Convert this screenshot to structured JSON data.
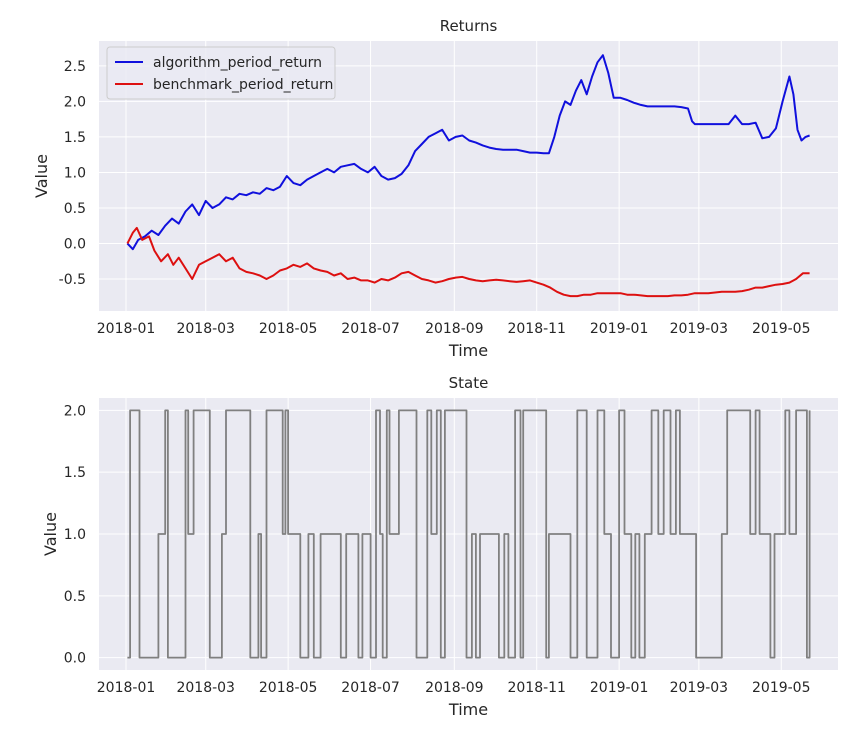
{
  "chart_data": [
    {
      "type": "line",
      "title": "Returns",
      "xlabel": "Time",
      "ylabel": "Value",
      "xlim": [
        "2017-12-12",
        "2019-06-12"
      ],
      "ylim": [
        -0.95,
        2.85
      ],
      "x_ticks": [
        "2018-01",
        "2018-03",
        "2018-05",
        "2018-07",
        "2018-09",
        "2018-11",
        "2019-01",
        "2019-03",
        "2019-05"
      ],
      "y_ticks": [
        -0.5,
        0.0,
        0.5,
        1.0,
        1.5,
        2.0,
        2.5
      ],
      "grid": true,
      "legend": "upper-left",
      "series": [
        {
          "name": "algorithm_period_return",
          "color": "#1010dd",
          "x": [
            "2018-01-02",
            "2018-01-06",
            "2018-01-10",
            "2018-01-15",
            "2018-01-20",
            "2018-01-25",
            "2018-01-30",
            "2018-02-04",
            "2018-02-09",
            "2018-02-14",
            "2018-02-19",
            "2018-02-24",
            "2018-03-01",
            "2018-03-06",
            "2018-03-11",
            "2018-03-16",
            "2018-03-21",
            "2018-03-26",
            "2018-03-31",
            "2018-04-05",
            "2018-04-10",
            "2018-04-15",
            "2018-04-20",
            "2018-04-25",
            "2018-04-30",
            "2018-05-05",
            "2018-05-10",
            "2018-05-15",
            "2018-05-20",
            "2018-05-25",
            "2018-05-30",
            "2018-06-04",
            "2018-06-09",
            "2018-06-14",
            "2018-06-19",
            "2018-06-24",
            "2018-06-29",
            "2018-07-04",
            "2018-07-09",
            "2018-07-14",
            "2018-07-19",
            "2018-07-24",
            "2018-07-29",
            "2018-08-03",
            "2018-08-08",
            "2018-08-13",
            "2018-08-18",
            "2018-08-23",
            "2018-08-28",
            "2018-09-02",
            "2018-09-07",
            "2018-09-12",
            "2018-09-17",
            "2018-09-22",
            "2018-09-27",
            "2018-10-02",
            "2018-10-07",
            "2018-10-12",
            "2018-10-17",
            "2018-10-22",
            "2018-10-27",
            "2018-11-01",
            "2018-11-06",
            "2018-11-10",
            "2018-11-14",
            "2018-11-18",
            "2018-11-22",
            "2018-11-26",
            "2018-11-30",
            "2018-12-04",
            "2018-12-08",
            "2018-12-12",
            "2018-12-16",
            "2018-12-20",
            "2018-12-24",
            "2018-12-28",
            "2019-01-02",
            "2019-01-07",
            "2019-01-12",
            "2019-01-17",
            "2019-01-22",
            "2019-01-27",
            "2019-02-01",
            "2019-02-06",
            "2019-02-11",
            "2019-02-16",
            "2019-02-21",
            "2019-02-24",
            "2019-02-26",
            "2019-03-03",
            "2019-03-08",
            "2019-03-13",
            "2019-03-18",
            "2019-03-23",
            "2019-03-28",
            "2019-04-02",
            "2019-04-07",
            "2019-04-12",
            "2019-04-17",
            "2019-04-22",
            "2019-04-27",
            "2019-05-02",
            "2019-05-07",
            "2019-05-10",
            "2019-05-13",
            "2019-05-16",
            "2019-05-19",
            "2019-05-22"
          ],
          "values": [
            0.0,
            -0.08,
            0.05,
            0.1,
            0.18,
            0.12,
            0.25,
            0.35,
            0.28,
            0.45,
            0.55,
            0.4,
            0.6,
            0.5,
            0.55,
            0.65,
            0.62,
            0.7,
            0.68,
            0.72,
            0.7,
            0.78,
            0.75,
            0.8,
            0.95,
            0.85,
            0.82,
            0.9,
            0.95,
            1.0,
            1.05,
            1.0,
            1.08,
            1.1,
            1.12,
            1.05,
            1.0,
            1.08,
            0.95,
            0.9,
            0.92,
            0.98,
            1.1,
            1.3,
            1.4,
            1.5,
            1.55,
            1.6,
            1.45,
            1.5,
            1.52,
            1.45,
            1.42,
            1.38,
            1.35,
            1.33,
            1.32,
            1.32,
            1.32,
            1.3,
            1.28,
            1.28,
            1.27,
            1.27,
            1.5,
            1.8,
            2.0,
            1.95,
            2.15,
            2.3,
            2.1,
            2.35,
            2.55,
            2.65,
            2.4,
            2.05,
            2.05,
            2.02,
            1.98,
            1.95,
            1.93,
            1.93,
            1.93,
            1.93,
            1.93,
            1.92,
            1.9,
            1.72,
            1.68,
            1.68,
            1.68,
            1.68,
            1.68,
            1.68,
            1.8,
            1.68,
            1.68,
            1.7,
            1.48,
            1.5,
            1.62,
            2.0,
            2.35,
            2.1,
            1.6,
            1.45,
            1.5,
            1.52
          ]
        },
        {
          "name": "benchmark_period_return",
          "color": "#dd1010",
          "x": [
            "2018-01-02",
            "2018-01-06",
            "2018-01-09",
            "2018-01-13",
            "2018-01-18",
            "2018-01-22",
            "2018-01-27",
            "2018-02-01",
            "2018-02-05",
            "2018-02-09",
            "2018-02-14",
            "2018-02-19",
            "2018-02-24",
            "2018-03-01",
            "2018-03-06",
            "2018-03-11",
            "2018-03-16",
            "2018-03-21",
            "2018-03-26",
            "2018-03-31",
            "2018-04-05",
            "2018-04-10",
            "2018-04-15",
            "2018-04-20",
            "2018-04-25",
            "2018-04-30",
            "2018-05-05",
            "2018-05-10",
            "2018-05-15",
            "2018-05-20",
            "2018-05-25",
            "2018-05-30",
            "2018-06-04",
            "2018-06-09",
            "2018-06-14",
            "2018-06-19",
            "2018-06-24",
            "2018-06-29",
            "2018-07-04",
            "2018-07-09",
            "2018-07-14",
            "2018-07-19",
            "2018-07-24",
            "2018-07-29",
            "2018-08-03",
            "2018-08-08",
            "2018-08-13",
            "2018-08-18",
            "2018-08-23",
            "2018-08-28",
            "2018-09-02",
            "2018-09-07",
            "2018-09-12",
            "2018-09-17",
            "2018-09-22",
            "2018-09-27",
            "2018-10-02",
            "2018-10-07",
            "2018-10-12",
            "2018-10-17",
            "2018-10-22",
            "2018-10-27",
            "2018-11-01",
            "2018-11-06",
            "2018-11-11",
            "2018-11-16",
            "2018-11-21",
            "2018-11-26",
            "2018-12-01",
            "2018-12-06",
            "2018-12-11",
            "2018-12-16",
            "2018-12-21",
            "2018-12-26",
            "2019-01-02",
            "2019-01-07",
            "2019-01-12",
            "2019-01-17",
            "2019-01-22",
            "2019-01-27",
            "2019-02-01",
            "2019-02-06",
            "2019-02-11",
            "2019-02-16",
            "2019-02-21",
            "2019-02-26",
            "2019-03-03",
            "2019-03-08",
            "2019-03-13",
            "2019-03-18",
            "2019-03-23",
            "2019-03-28",
            "2019-04-02",
            "2019-04-07",
            "2019-04-12",
            "2019-04-17",
            "2019-04-22",
            "2019-04-27",
            "2019-05-02",
            "2019-05-07",
            "2019-05-12",
            "2019-05-17",
            "2019-05-22"
          ],
          "values": [
            0.0,
            0.15,
            0.22,
            0.05,
            0.1,
            -0.1,
            -0.25,
            -0.15,
            -0.3,
            -0.2,
            -0.35,
            -0.5,
            -0.3,
            -0.25,
            -0.2,
            -0.15,
            -0.25,
            -0.2,
            -0.35,
            -0.4,
            -0.42,
            -0.45,
            -0.5,
            -0.45,
            -0.38,
            -0.35,
            -0.3,
            -0.33,
            -0.28,
            -0.35,
            -0.38,
            -0.4,
            -0.45,
            -0.42,
            -0.5,
            -0.48,
            -0.52,
            -0.52,
            -0.55,
            -0.5,
            -0.52,
            -0.48,
            -0.42,
            -0.4,
            -0.45,
            -0.5,
            -0.52,
            -0.55,
            -0.53,
            -0.5,
            -0.48,
            -0.47,
            -0.5,
            -0.52,
            -0.53,
            -0.52,
            -0.51,
            -0.52,
            -0.53,
            -0.54,
            -0.53,
            -0.52,
            -0.55,
            -0.58,
            -0.62,
            -0.68,
            -0.72,
            -0.74,
            -0.74,
            -0.72,
            -0.72,
            -0.7,
            -0.7,
            -0.7,
            -0.7,
            -0.72,
            -0.72,
            -0.73,
            -0.74,
            -0.74,
            -0.74,
            -0.74,
            -0.73,
            -0.73,
            -0.72,
            -0.7,
            -0.7,
            -0.7,
            -0.69,
            -0.68,
            -0.68,
            -0.68,
            -0.67,
            -0.65,
            -0.62,
            -0.62,
            -0.6,
            -0.58,
            -0.57,
            -0.55,
            -0.5,
            -0.42,
            -0.42
          ]
        }
      ]
    },
    {
      "type": "line",
      "title": "State",
      "xlabel": "Time",
      "ylabel": "Value",
      "xlim": [
        "2017-12-12",
        "2019-06-12"
      ],
      "ylim": [
        -0.1,
        2.1
      ],
      "x_ticks": [
        "2018-01",
        "2018-03",
        "2018-05",
        "2018-07",
        "2018-09",
        "2018-11",
        "2019-01",
        "2019-03",
        "2019-05"
      ],
      "y_ticks": [
        0.0,
        0.5,
        1.0,
        1.5,
        2.0
      ],
      "grid": true,
      "step": true,
      "series": [
        {
          "color": "#808080",
          "x": [
            "2018-01-02",
            "2018-01-04",
            "2018-01-11",
            "2018-01-15",
            "2018-01-25",
            "2018-01-30",
            "2018-02-01",
            "2018-02-10",
            "2018-02-14",
            "2018-02-16",
            "2018-02-20",
            "2018-03-01",
            "2018-03-04",
            "2018-03-08",
            "2018-03-13",
            "2018-03-16",
            "2018-03-25",
            "2018-04-03",
            "2018-04-09",
            "2018-04-11",
            "2018-04-15",
            "2018-04-27",
            "2018-04-29",
            "2018-05-01",
            "2018-05-04",
            "2018-05-10",
            "2018-05-16",
            "2018-05-20",
            "2018-05-25",
            "2018-06-06",
            "2018-06-09",
            "2018-06-13",
            "2018-06-22",
            "2018-06-25",
            "2018-07-01",
            "2018-07-05",
            "2018-07-08",
            "2018-07-10",
            "2018-07-13",
            "2018-07-15",
            "2018-07-22",
            "2018-07-28",
            "2018-08-04",
            "2018-08-08",
            "2018-08-12",
            "2018-08-15",
            "2018-08-19",
            "2018-08-22",
            "2018-08-25",
            "2018-09-10",
            "2018-09-14",
            "2018-09-17",
            "2018-09-20",
            "2018-09-25",
            "2018-10-04",
            "2018-10-08",
            "2018-10-11",
            "2018-10-16",
            "2018-10-20",
            "2018-10-22",
            "2018-11-08",
            "2018-11-10",
            "2018-11-26",
            "2018-12-01",
            "2018-12-08",
            "2018-12-16",
            "2018-12-21",
            "2018-12-26",
            "2019-01-01",
            "2019-01-05",
            "2019-01-10",
            "2019-01-13",
            "2019-01-16",
            "2019-01-20",
            "2019-01-25",
            "2019-01-30",
            "2019-02-03",
            "2019-02-08",
            "2019-02-12",
            "2019-02-15",
            "2019-02-19",
            "2019-02-23",
            "2019-02-27",
            "2019-03-18",
            "2019-03-22",
            "2019-04-04",
            "2019-04-08",
            "2019-04-12",
            "2019-04-15",
            "2019-04-20",
            "2019-04-23",
            "2019-04-26",
            "2019-05-04",
            "2019-05-07",
            "2019-05-12",
            "2019-05-19",
            "2019-05-20",
            "2019-05-22"
          ],
          "values": [
            0,
            2,
            0,
            0,
            1,
            2,
            0,
            0,
            2,
            1,
            2,
            2,
            0,
            0,
            1,
            2,
            2,
            0,
            1,
            0,
            2,
            1,
            2,
            1,
            1,
            0,
            1,
            0,
            1,
            1,
            0,
            1,
            0,
            1,
            0,
            2,
            1,
            0,
            2,
            1,
            2,
            2,
            0,
            0,
            2,
            1,
            2,
            0,
            2,
            0,
            1,
            0,
            1,
            1,
            0,
            1,
            0,
            2,
            0,
            2,
            0,
            1,
            0,
            2,
            0,
            2,
            1,
            0,
            2,
            1,
            0,
            1,
            0,
            1,
            2,
            1,
            2,
            1,
            2,
            1,
            1,
            1,
            0,
            1,
            2,
            2,
            1,
            2,
            1,
            1,
            0,
            1,
            2,
            1,
            2,
            2,
            0,
            2
          ]
        }
      ]
    }
  ]
}
